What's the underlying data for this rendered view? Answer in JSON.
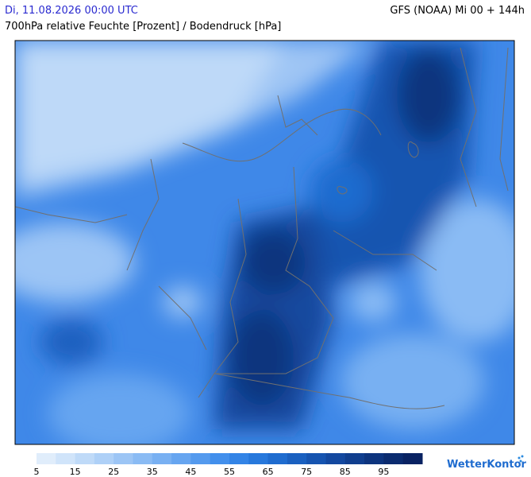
{
  "header": {
    "datetime": "Di, 11.08.2026 00:00 UTC",
    "model": "GFS (NOAA) Mi 00 + 144h",
    "subtitle": "700hPa relative Feuchte [Prozent] / Bodendruck [hPa]"
  },
  "legend": {
    "labels": [
      5,
      15,
      25,
      35,
      45,
      55,
      65,
      75,
      85,
      95
    ],
    "colors": [
      "#e0edfb",
      "#d0e4fa",
      "#bfdaf8",
      "#aed0f7",
      "#9cc5f5",
      "#8abbf4",
      "#78b0f2",
      "#66a5f0",
      "#549aee",
      "#428fec",
      "#3384e6",
      "#2778dc",
      "#1f6ccf",
      "#1a60c0",
      "#1654b0",
      "#13489f",
      "#103e8e",
      "#0d347e",
      "#0b2b6f",
      "#092262"
    ]
  },
  "logo": "WetterKontor"
}
